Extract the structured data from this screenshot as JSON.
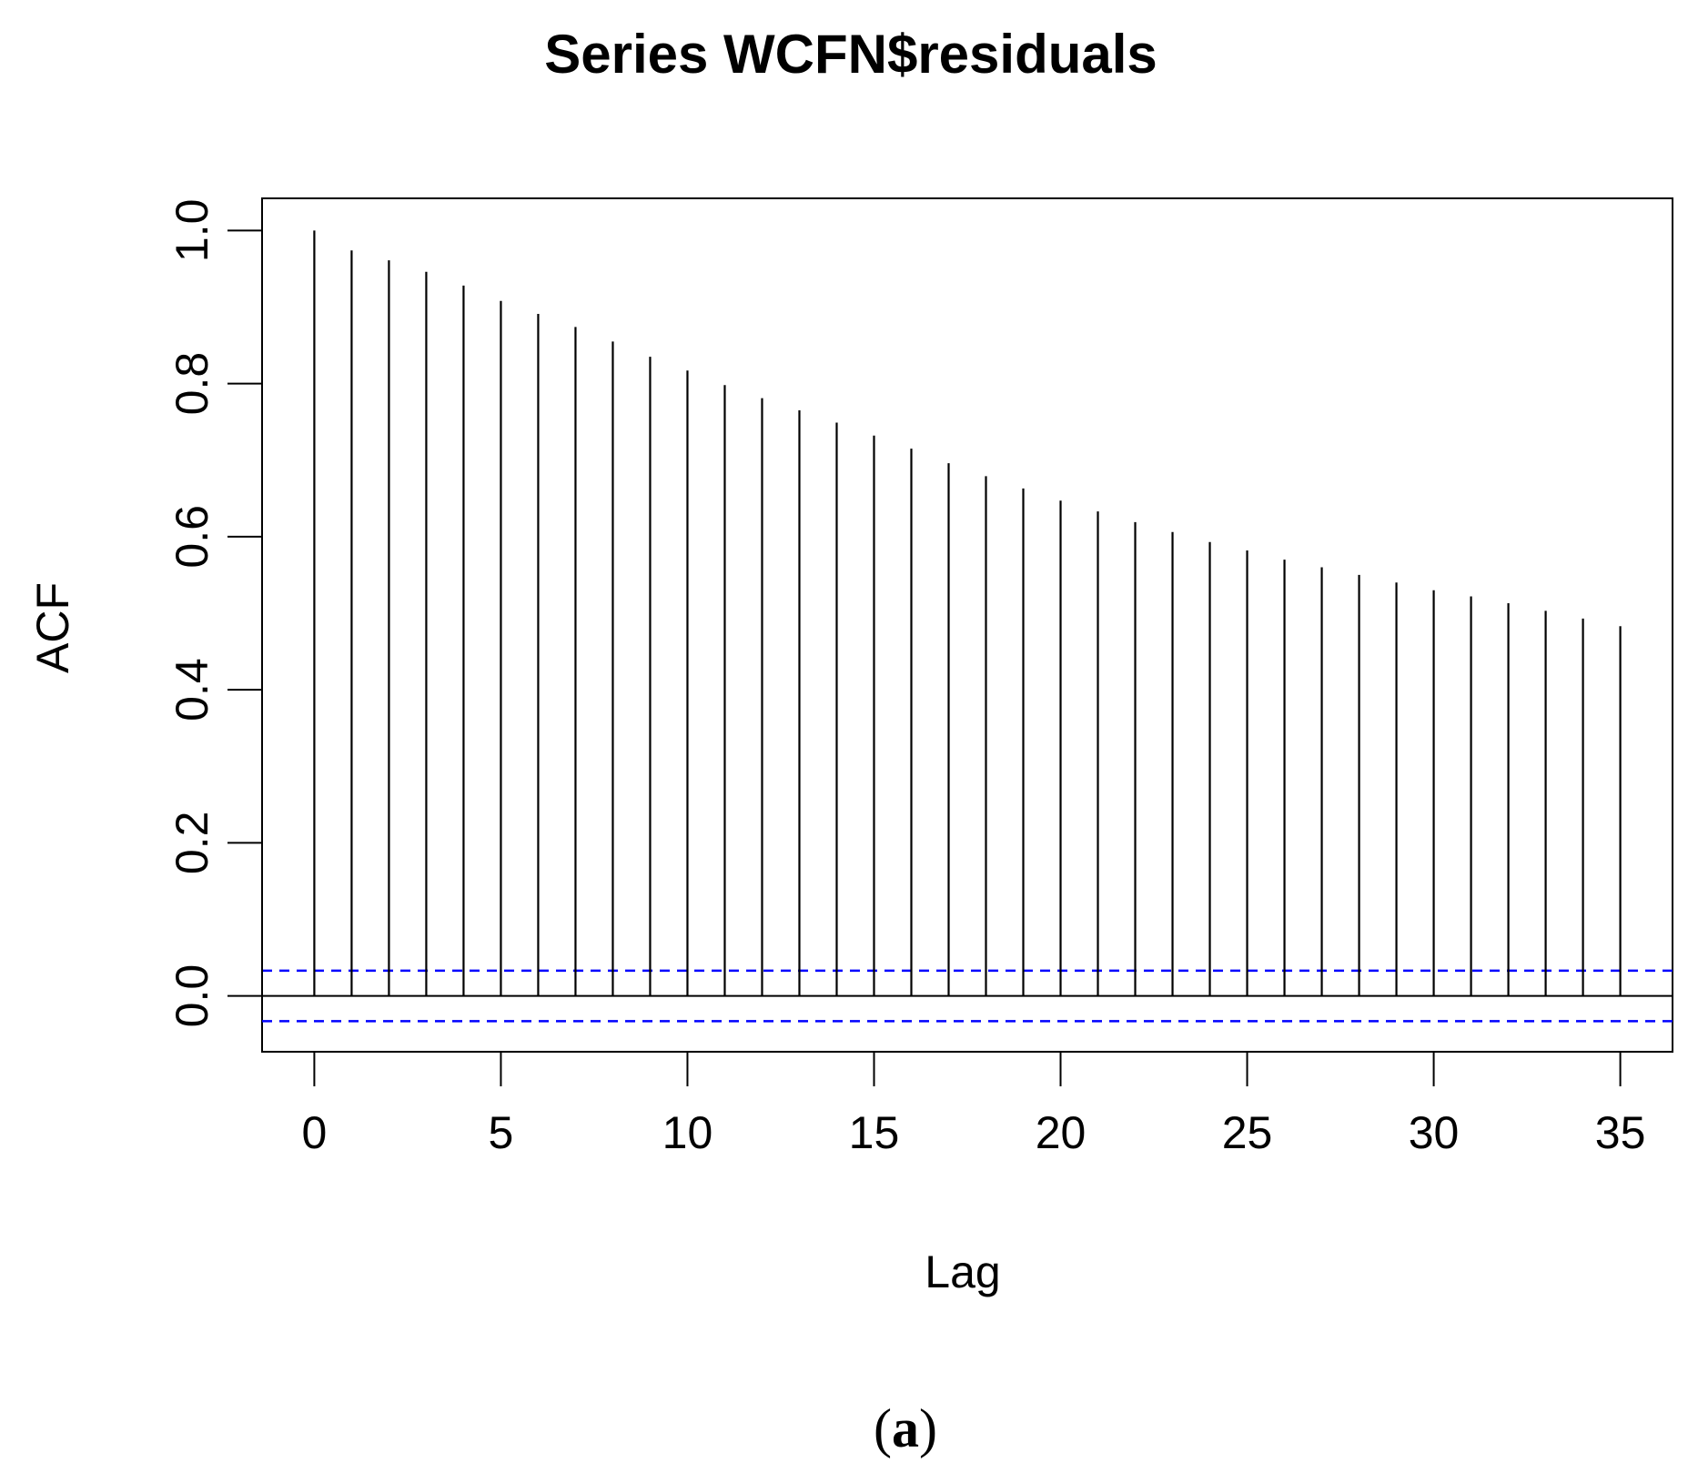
{
  "chart_data": {
    "type": "bar",
    "title": "Series  WCFN$residuals",
    "xlabel": "Lag",
    "ylabel": "ACF",
    "x": [
      0,
      1,
      2,
      3,
      4,
      5,
      6,
      7,
      8,
      9,
      10,
      11,
      12,
      13,
      14,
      15,
      16,
      17,
      18,
      19,
      20,
      21,
      22,
      23,
      24,
      25,
      26,
      27,
      28,
      29,
      30,
      31,
      32,
      33,
      34,
      35
    ],
    "values": [
      1.0,
      0.974,
      0.961,
      0.946,
      0.928,
      0.908,
      0.891,
      0.874,
      0.855,
      0.835,
      0.817,
      0.798,
      0.781,
      0.765,
      0.749,
      0.732,
      0.715,
      0.696,
      0.679,
      0.663,
      0.647,
      0.633,
      0.619,
      0.606,
      0.593,
      0.582,
      0.57,
      0.56,
      0.55,
      0.54,
      0.53,
      0.522,
      0.513,
      0.503,
      0.493,
      0.483
    ],
    "confidence_bound": 0.033,
    "xlim": [
      -1.4,
      36.4
    ],
    "ylim": [
      -0.073,
      1.042
    ],
    "xticks": [
      0,
      5,
      10,
      15,
      20,
      25,
      30,
      35
    ],
    "xtick_labels": [
      "0",
      "5",
      "10",
      "15",
      "20",
      "25",
      "30",
      "35"
    ],
    "yticks": [
      0.0,
      0.2,
      0.4,
      0.6,
      0.8,
      1.0
    ],
    "ytick_labels": [
      "0.0",
      "0.2",
      "0.4",
      "0.6",
      "0.8",
      "1.0"
    ],
    "grid": false,
    "colors": {
      "spike": "#000000",
      "confidence": "#0000ff",
      "zero_line": "#000000"
    }
  },
  "caption": {
    "open": "(",
    "letter": "a",
    "close": ")"
  }
}
